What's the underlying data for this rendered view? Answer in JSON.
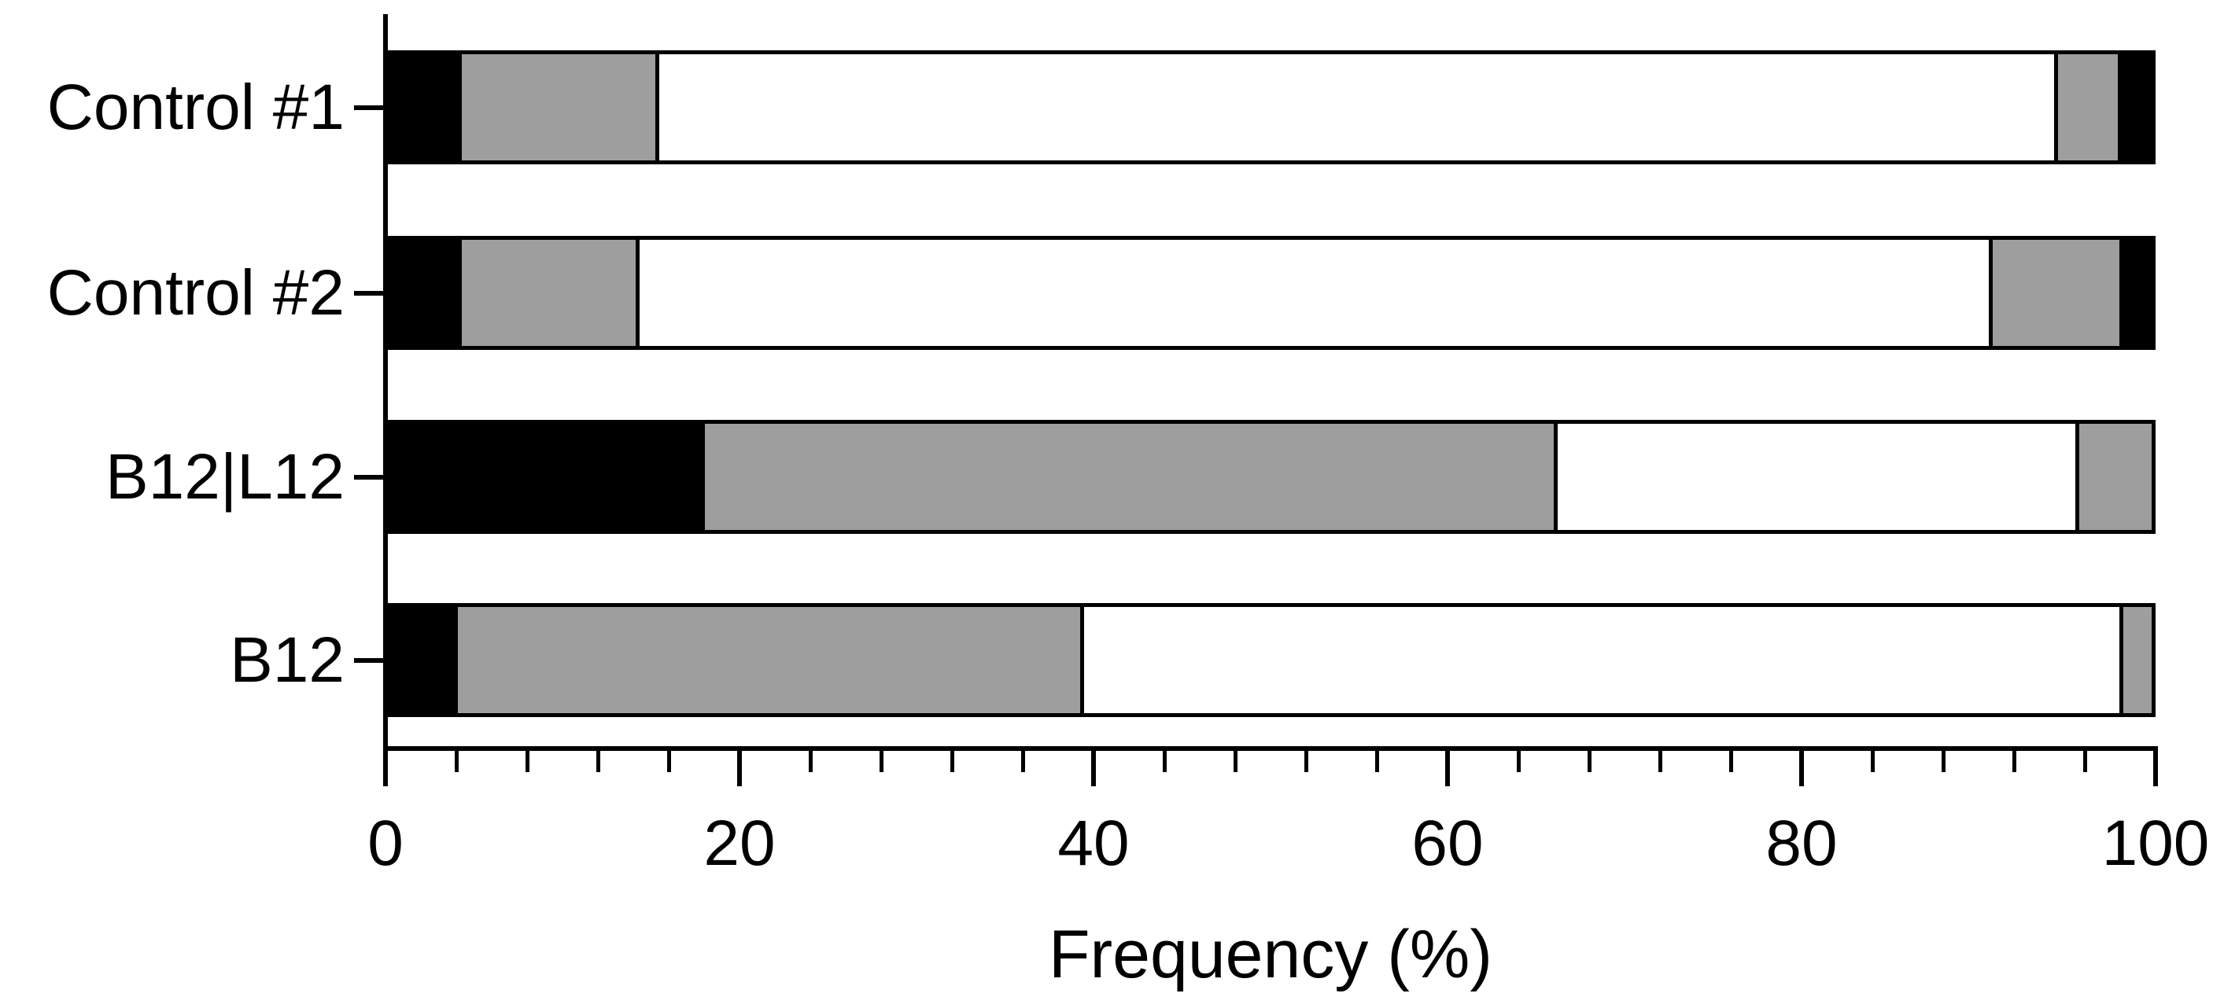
{
  "chart_data": {
    "type": "bar",
    "orientation": "horizontal",
    "stacked": true,
    "title": "",
    "xlabel": "Frequency (%)",
    "ylabel": "",
    "xlim": [
      0,
      100
    ],
    "x_ticks": [
      0,
      20,
      40,
      60,
      80,
      100
    ],
    "x_tick_labels": [
      "0",
      "20",
      "40",
      "60",
      "80",
      "100"
    ],
    "x_minor_tick_step": 4,
    "grid": false,
    "legend": false,
    "categories": [
      "Control #1",
      "Control #2",
      "B12|L12",
      "B12"
    ],
    "series": [
      {
        "name": "segment-1-black",
        "color": "#000000",
        "values": [
          4.1,
          4.1,
          17.9,
          3.9
        ]
      },
      {
        "name": "segment-2-gray",
        "color": "#9e9e9e",
        "values": [
          11.2,
          10.1,
          48.4,
          35.5
        ]
      },
      {
        "name": "segment-3-white",
        "color": "#ffffff",
        "values": [
          79.4,
          76.8,
          29.6,
          59.0
        ]
      },
      {
        "name": "segment-4-gray",
        "color": "#9e9e9e",
        "values": [
          3.6,
          7.4,
          4.1,
          1.6
        ]
      },
      {
        "name": "segment-5-black",
        "color": "#000000",
        "values": [
          1.7,
          1.6,
          0,
          0
        ]
      }
    ],
    "colors": {
      "black": "#000000",
      "gray": "#9e9e9e",
      "white": "#ffffff"
    }
  }
}
